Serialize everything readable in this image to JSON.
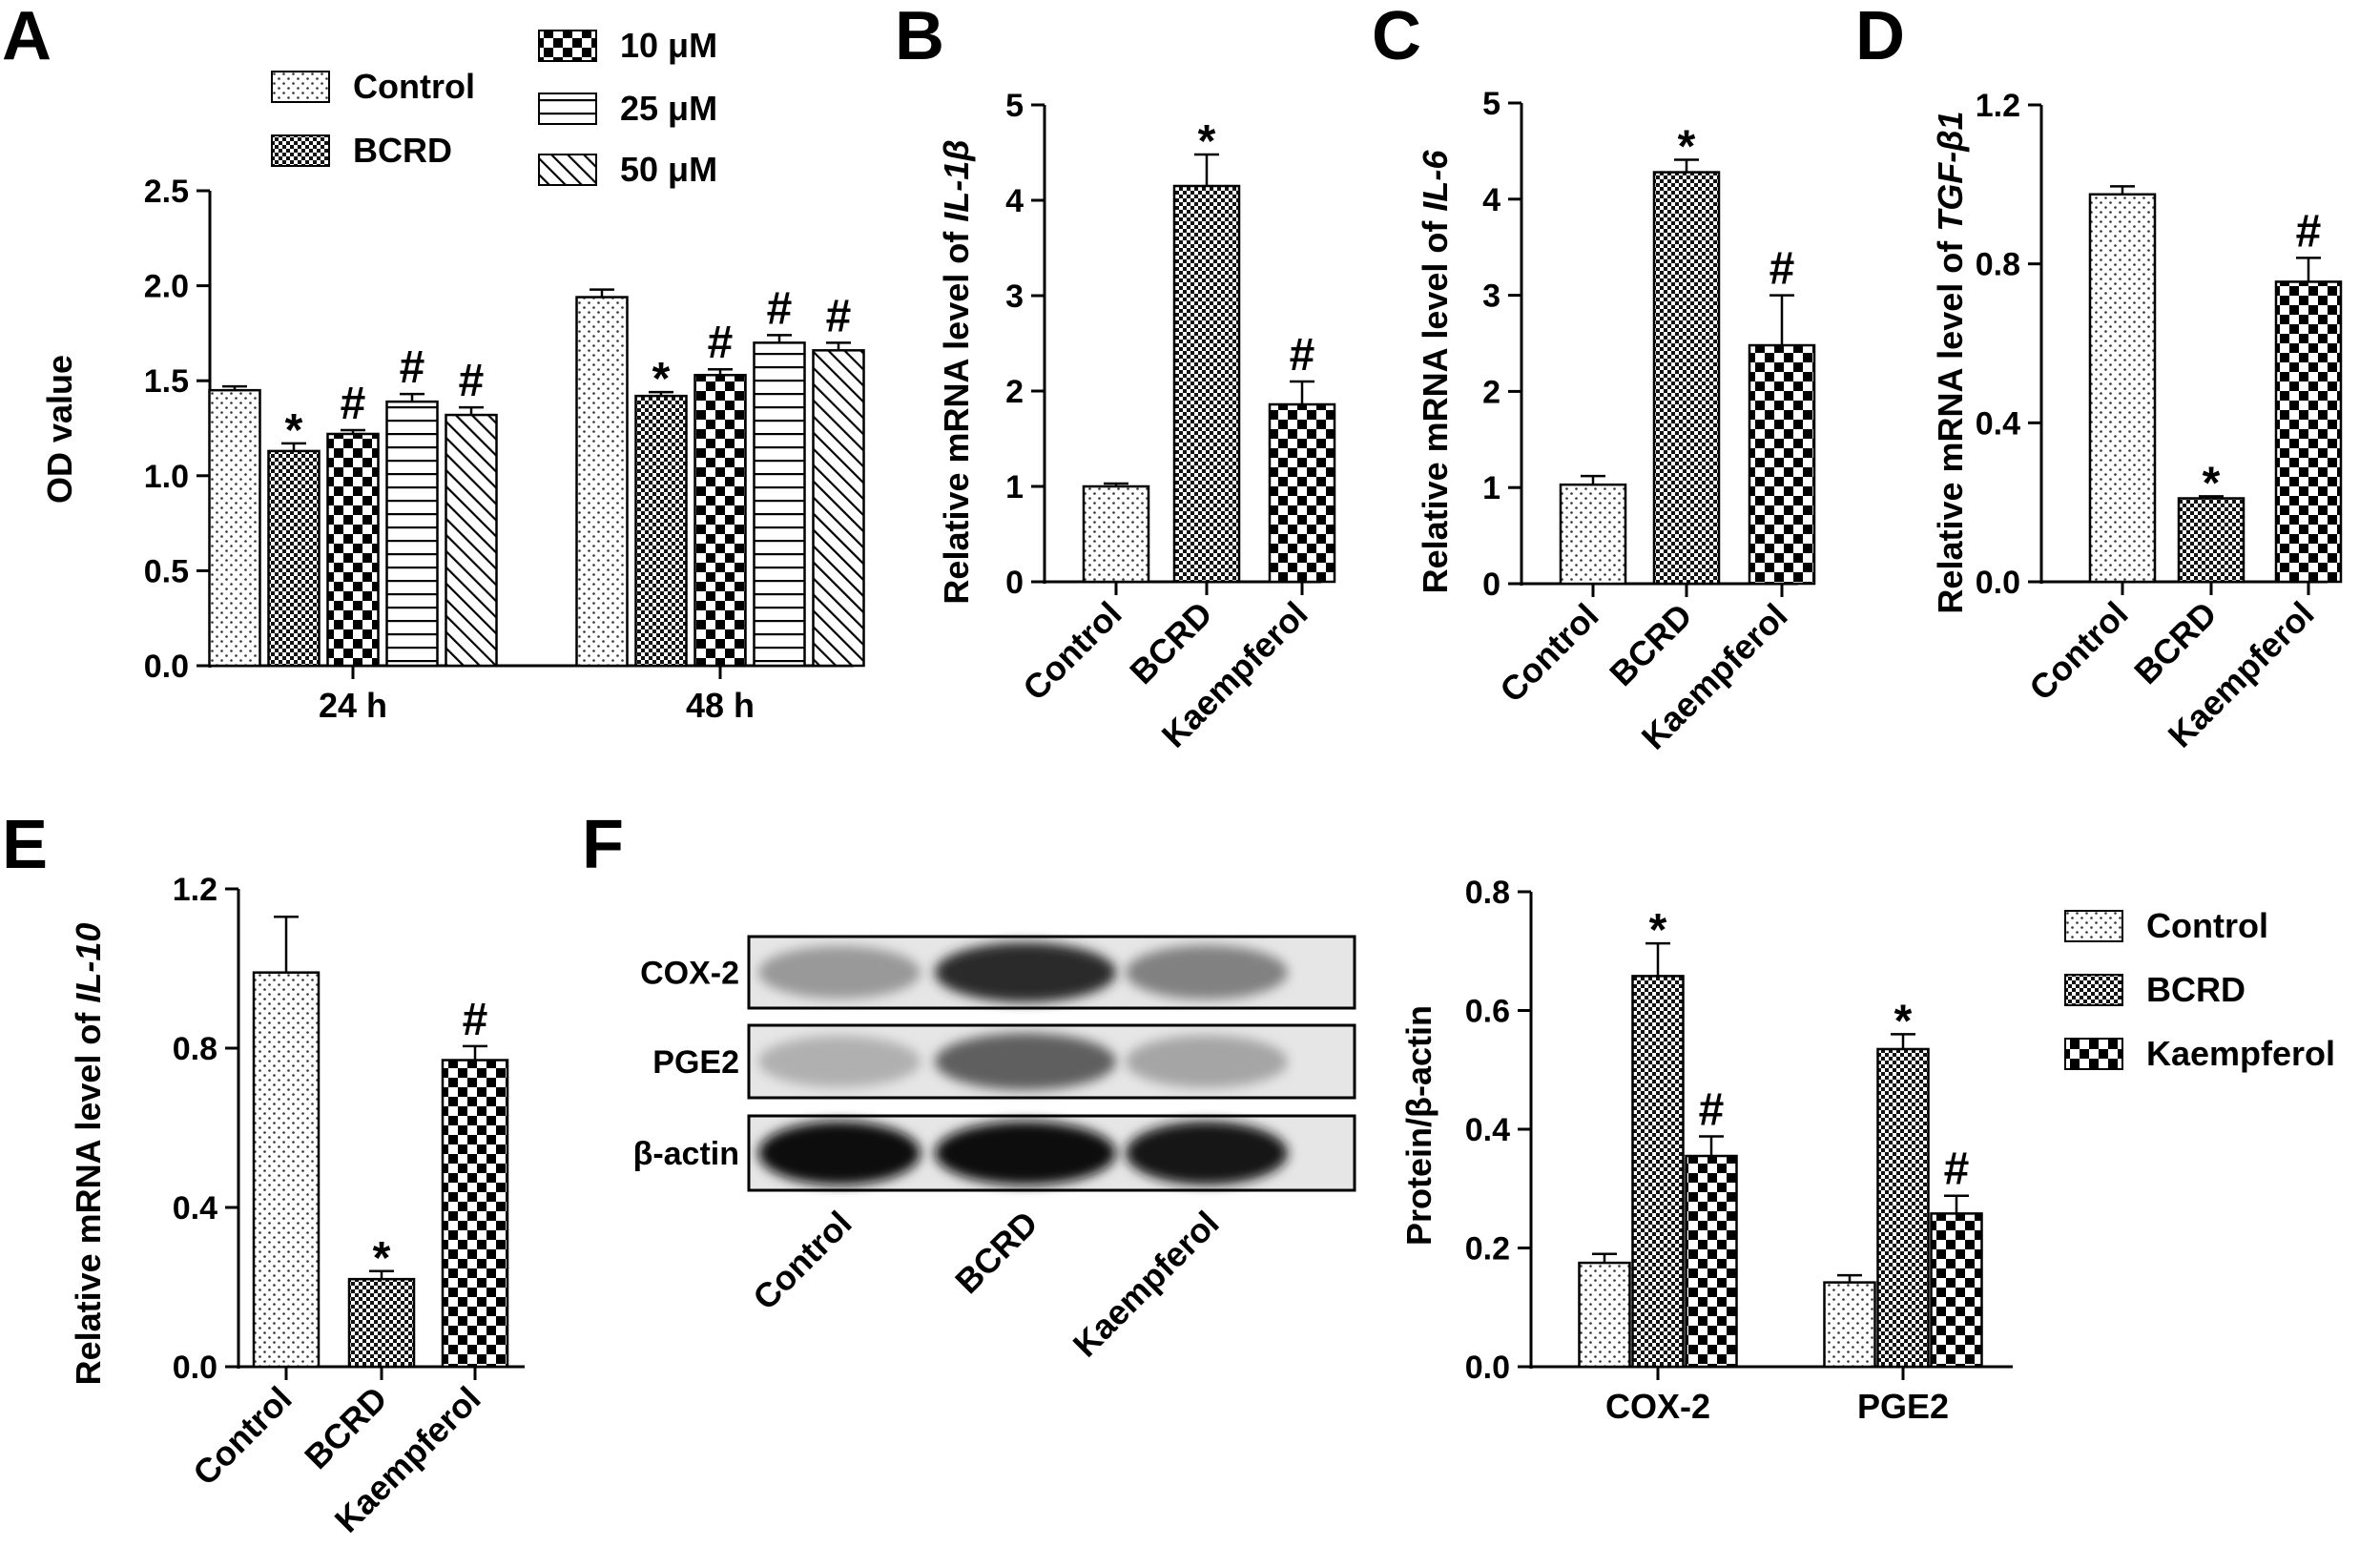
{
  "panels": {
    "A": "A",
    "B": "B",
    "C": "C",
    "D": "D",
    "E": "E",
    "F": "F"
  },
  "western_blot": {
    "rows": [
      "COX-2",
      "PGE2",
      "β-actin"
    ],
    "lanes": [
      "Control",
      "BCRD",
      "Kaempferol"
    ],
    "intensity": [
      [
        0.35,
        0.82,
        0.45
      ],
      [
        0.25,
        0.6,
        0.3
      ],
      [
        0.95,
        0.95,
        0.92
      ]
    ]
  },
  "chart_data": [
    {
      "id": "A",
      "type": "bar",
      "title": "",
      "ylabel": "OD value",
      "categories": [
        "24 h",
        "48 h"
      ],
      "ylim": [
        0,
        2.5
      ],
      "yticks": [
        "0.0",
        "0.5",
        "1.0",
        "1.5",
        "2.0",
        "2.5"
      ],
      "series": [
        {
          "name": "Control",
          "pattern": "dots",
          "values": [
            1.45,
            1.94
          ],
          "errors": [
            0.02,
            0.04
          ],
          "marks": [
            "",
            ""
          ]
        },
        {
          "name": "BCRD",
          "pattern": "checker-small",
          "values": [
            1.13,
            1.42
          ],
          "errors": [
            0.04,
            0.02
          ],
          "marks": [
            "*",
            "*"
          ]
        },
        {
          "name": "10 μM",
          "pattern": "checker-large",
          "values": [
            1.22,
            1.53
          ],
          "errors": [
            0.02,
            0.03
          ],
          "marks": [
            "#",
            "#"
          ]
        },
        {
          "name": "25 μM",
          "pattern": "hlines",
          "values": [
            1.39,
            1.7
          ],
          "errors": [
            0.04,
            0.04
          ],
          "marks": [
            "#",
            "#"
          ]
        },
        {
          "name": "50 μM",
          "pattern": "diag",
          "values": [
            1.32,
            1.66
          ],
          "errors": [
            0.04,
            0.04
          ],
          "marks": [
            "#",
            "#"
          ]
        }
      ],
      "legend": "top"
    },
    {
      "id": "B",
      "type": "bar",
      "ylabel_prefix": "Relative mRNA level of ",
      "ylabel_gene": "IL-1β",
      "categories": [
        "Control",
        "BCRD",
        "Kaempferol"
      ],
      "values": [
        1.0,
        4.15,
        1.86
      ],
      "errors": [
        0.03,
        0.33,
        0.24
      ],
      "marks": [
        "",
        "*",
        "#"
      ],
      "patterns": [
        "dots",
        "checker-small",
        "checker-large"
      ],
      "ylim": [
        0,
        5
      ],
      "yticks": [
        "0",
        "1",
        "2",
        "3",
        "4",
        "5"
      ]
    },
    {
      "id": "C",
      "type": "bar",
      "ylabel_prefix": "Relative mRNA level of ",
      "ylabel_gene": "IL-6",
      "categories": [
        "Control",
        "BCRD",
        "Kaempferol"
      ],
      "values": [
        1.03,
        4.28,
        2.48
      ],
      "errors": [
        0.09,
        0.13,
        0.52
      ],
      "marks": [
        "",
        "*",
        "#"
      ],
      "patterns": [
        "dots",
        "checker-small",
        "checker-large"
      ],
      "ylim": [
        0,
        5
      ],
      "yticks": [
        "0",
        "1",
        "2",
        "3",
        "4",
        "5"
      ]
    },
    {
      "id": "D",
      "type": "bar",
      "ylabel_prefix": "Relative mRNA level of ",
      "ylabel_gene": "TGF-β1",
      "categories": [
        "Control",
        "BCRD",
        "Kaempferol"
      ],
      "values": [
        0.975,
        0.21,
        0.755
      ],
      "errors": [
        0.02,
        0.005,
        0.06
      ],
      "marks": [
        "",
        "*",
        "#"
      ],
      "patterns": [
        "dots",
        "checker-small",
        "checker-large"
      ],
      "ylim": [
        0,
        1.2
      ],
      "yticks": [
        "0.0",
        "0.4",
        "0.8",
        "1.2"
      ]
    },
    {
      "id": "E",
      "type": "bar",
      "ylabel_prefix": "Relative mRNA level of ",
      "ylabel_gene": "IL-10",
      "categories": [
        "Control",
        "BCRD",
        "Kaempferol"
      ],
      "values": [
        0.99,
        0.22,
        0.77
      ],
      "errors": [
        0.14,
        0.02,
        0.035
      ],
      "marks": [
        "",
        "*",
        "#"
      ],
      "patterns": [
        "dots",
        "checker-small",
        "checker-large"
      ],
      "ylim": [
        0,
        1.2
      ],
      "yticks": [
        "0.0",
        "0.4",
        "0.8",
        "1.2"
      ]
    },
    {
      "id": "F",
      "type": "bar",
      "ylabel": "Protein/β-actin",
      "categories": [
        "COX-2",
        "PGE2"
      ],
      "ylim": [
        0,
        0.8
      ],
      "yticks": [
        "0.0",
        "0.2",
        "0.4",
        "0.6",
        "0.8"
      ],
      "series": [
        {
          "name": "Control",
          "pattern": "dots",
          "values": [
            0.175,
            0.142
          ],
          "errors": [
            0.015,
            0.012
          ],
          "marks": [
            "",
            ""
          ]
        },
        {
          "name": "BCRD",
          "pattern": "checker-small",
          "values": [
            0.658,
            0.535
          ],
          "errors": [
            0.055,
            0.025
          ],
          "marks": [
            "*",
            "*"
          ]
        },
        {
          "name": "Kaempferol",
          "pattern": "checker-large",
          "values": [
            0.355,
            0.258
          ],
          "errors": [
            0.033,
            0.03
          ],
          "marks": [
            "#",
            "#"
          ]
        }
      ],
      "legend": "right"
    }
  ]
}
